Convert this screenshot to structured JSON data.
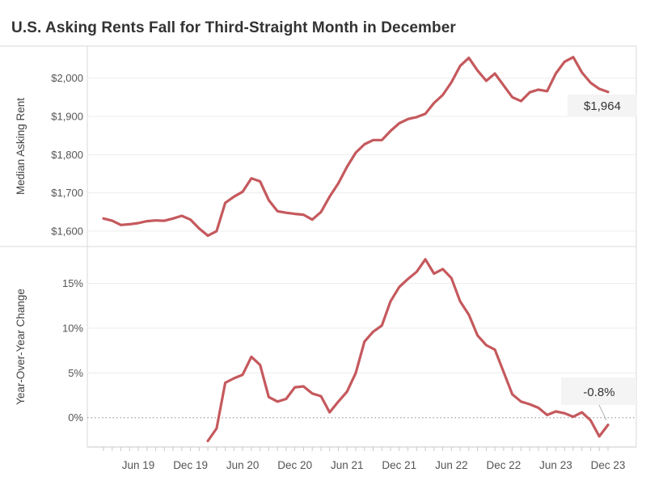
{
  "header": {
    "title": "U.S. Asking Rents Fall for Third-Straight Month in December"
  },
  "colors": {
    "line": "#c5595d",
    "grid": "#ececec",
    "zero_dotted": "#8a8a8a",
    "pane_border": "#d9d9d9",
    "axis_line": "#c9c9c9",
    "tick_text": "#555555",
    "axis_title_text": "#444444",
    "title_text": "#333333",
    "end_label_bg": "#f4f4f4",
    "end_label_text": "#333333",
    "connector": "#b0b0b0"
  },
  "x_axis": {
    "tick_labels": [
      "Jun 19",
      "Dec 19",
      "Jun 20",
      "Dec 20",
      "Jun 21",
      "Dec 21",
      "Jun 22",
      "Dec 22",
      "Jun 23",
      "Dec 23"
    ]
  },
  "chart_data": [
    {
      "type": "line",
      "panel": "top",
      "ylabel": "Median Asking Rent",
      "ylim": [
        1555,
        2090
      ],
      "grid": true,
      "yticks": [
        {
          "value": 2000,
          "label": "$2,000"
        },
        {
          "value": 1900,
          "label": "$1,900"
        },
        {
          "value": 1800,
          "label": "$1,800"
        },
        {
          "value": 1700,
          "label": "$1,700"
        },
        {
          "value": 1600,
          "label": "$1,600"
        }
      ],
      "end_label": "$1,964",
      "series": [
        {
          "name": "Median Asking Rent",
          "months": [
            "Feb 19",
            "Mar 19",
            "Apr 19",
            "May 19",
            "Jun 19",
            "Jul 19",
            "Aug 19",
            "Sep 19",
            "Oct 19",
            "Nov 19",
            "Dec 19",
            "Jan 20",
            "Feb 20",
            "Mar 20",
            "Apr 20",
            "May 20",
            "Jun 20",
            "Jul 20",
            "Aug 20",
            "Sep 20",
            "Oct 20",
            "Nov 20",
            "Dec 20",
            "Jan 21",
            "Feb 21",
            "Mar 21",
            "Apr 21",
            "May 21",
            "Jun 21",
            "Jul 21",
            "Aug 21",
            "Sep 21",
            "Oct 21",
            "Nov 21",
            "Dec 21",
            "Jan 22",
            "Feb 22",
            "Mar 22",
            "Apr 22",
            "May 22",
            "Jun 22",
            "Jul 22",
            "Aug 22",
            "Sep 22",
            "Oct 22",
            "Nov 22",
            "Dec 22",
            "Jan 23",
            "Feb 23",
            "Mar 23",
            "Apr 23",
            "May 23",
            "Jun 23",
            "Jul 23",
            "Aug 23",
            "Sep 23",
            "Oct 23",
            "Nov 23",
            "Dec 23"
          ],
          "values": [
            1633,
            1627,
            1616,
            1618,
            1621,
            1626,
            1628,
            1627,
            1633,
            1640,
            1630,
            1607,
            1588,
            1600,
            1674,
            1690,
            1703,
            1738,
            1730,
            1681,
            1652,
            1648,
            1645,
            1643,
            1630,
            1650,
            1690,
            1725,
            1768,
            1805,
            1827,
            1838,
            1838,
            1862,
            1882,
            1893,
            1898,
            1907,
            1935,
            1956,
            1989,
            2032,
            2053,
            2020,
            1993,
            2012,
            1981,
            1950,
            1940,
            1963,
            1970,
            1966,
            2012,
            2043,
            2055,
            2015,
            1988,
            1972,
            1964
          ]
        }
      ]
    },
    {
      "type": "line",
      "panel": "bottom",
      "ylabel": "Year-Over-Year Change",
      "ylim": [
        -3.5,
        19
      ],
      "grid": true,
      "yticks": [
        {
          "value": 15,
          "label": "15%"
        },
        {
          "value": 10,
          "label": "10%"
        },
        {
          "value": 5,
          "label": "5%"
        },
        {
          "value": 0,
          "label": "0%",
          "dotted": true
        }
      ],
      "end_label": "-0.8%",
      "series": [
        {
          "name": "Year-Over-Year Change",
          "months": [
            "Feb 20",
            "Mar 20",
            "Apr 20",
            "May 20",
            "Jun 20",
            "Jul 20",
            "Aug 20",
            "Sep 20",
            "Oct 20",
            "Nov 20",
            "Dec 20",
            "Jan 21",
            "Feb 21",
            "Mar 21",
            "Apr 21",
            "May 21",
            "Jun 21",
            "Jul 21",
            "Aug 21",
            "Sep 21",
            "Oct 21",
            "Nov 21",
            "Dec 21",
            "Jan 22",
            "Feb 22",
            "Mar 22",
            "Apr 22",
            "May 22",
            "Jun 22",
            "Jul 22",
            "Aug 22",
            "Sep 22",
            "Oct 22",
            "Nov 22",
            "Dec 22",
            "Jan 23",
            "Feb 23",
            "Mar 23",
            "Apr 23",
            "May 23",
            "Jun 23",
            "Jul 23",
            "Aug 23",
            "Sep 23",
            "Oct 23",
            "Nov 23",
            "Dec 23"
          ],
          "values": [
            -2.6,
            -1.2,
            3.9,
            4.4,
            4.8,
            6.8,
            5.9,
            2.3,
            1.8,
            2.1,
            3.4,
            3.5,
            2.7,
            2.4,
            0.6,
            1.8,
            2.9,
            5.0,
            8.5,
            9.6,
            10.3,
            13.0,
            14.6,
            15.5,
            16.3,
            17.7,
            16.1,
            16.6,
            15.6,
            13.0,
            11.5,
            9.2,
            8.1,
            7.6,
            5.1,
            2.6,
            1.8,
            1.5,
            1.1,
            0.3,
            0.7,
            0.5,
            0.1,
            0.6,
            -0.3,
            -2.1,
            -0.8
          ]
        }
      ]
    }
  ]
}
